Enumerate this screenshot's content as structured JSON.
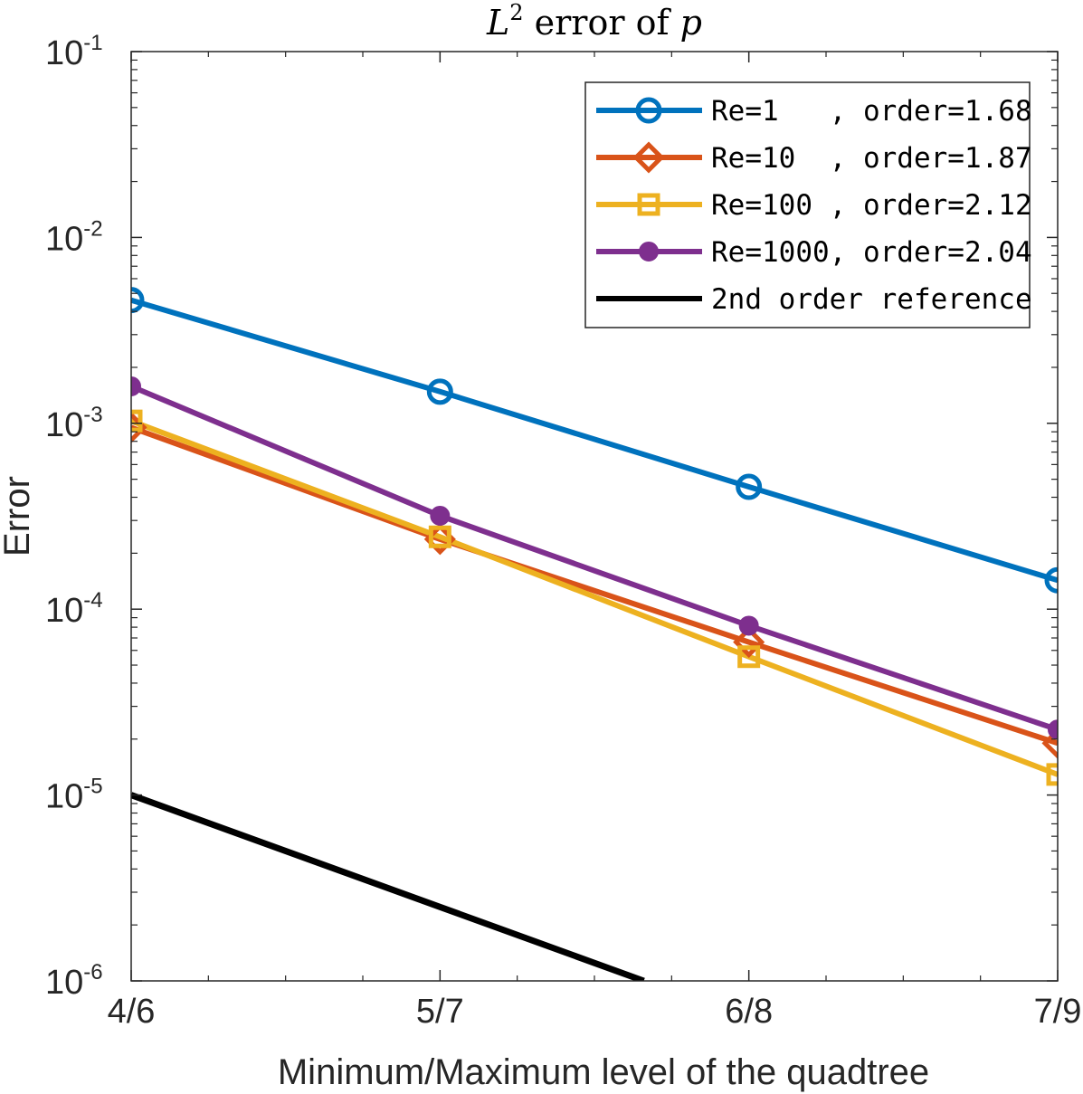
{
  "chart_data": {
    "type": "line",
    "title": {
      "base": "L",
      "sup": "2",
      "mid": " error of ",
      "var": "p"
    },
    "xlabel": "Minimum/Maximum level of the quadtree",
    "ylabel": "Error",
    "x": [
      0,
      1,
      2,
      3
    ],
    "categories": [
      "4/6",
      "5/7",
      "6/8",
      "7/9"
    ],
    "yscale": "log",
    "ylim": [
      1e-06,
      0.1
    ],
    "yticks": [
      {
        "base": "10",
        "exp": "-1",
        "value": 0.1
      },
      {
        "base": "10",
        "exp": "-2",
        "value": 0.01
      },
      {
        "base": "10",
        "exp": "-3",
        "value": 0.001
      },
      {
        "base": "10",
        "exp": "-4",
        "value": 0.0001
      },
      {
        "base": "10",
        "exp": "-5",
        "value": 1e-05
      },
      {
        "base": "10",
        "exp": "-6",
        "value": 1e-06
      }
    ],
    "grid": false,
    "legend_position": "top-right",
    "series": [
      {
        "name": "Re=1   , order=1.68",
        "color": "#0072BD",
        "marker": "circle",
        "x": [
          0,
          1,
          2,
          3
        ],
        "values": [
          0.0046,
          0.00148,
          0.000455,
          0.000143
        ]
      },
      {
        "name": "Re=10  , order=1.87",
        "color": "#D95319",
        "marker": "diamond",
        "x": [
          0,
          1,
          2,
          3
        ],
        "values": [
          0.00095,
          0.000238,
          6.65e-05,
          1.9e-05
        ]
      },
      {
        "name": "Re=100 , order=2.12",
        "color": "#EDB120",
        "marker": "square",
        "x": [
          0,
          1,
          2,
          3
        ],
        "values": [
          0.00103,
          0.000245,
          5.55e-05,
          1.29e-05
        ]
      },
      {
        "name": "Re=1000, order=2.04",
        "color": "#7E2F8E",
        "marker": "filled-circle",
        "x": [
          0,
          1,
          2,
          3
        ],
        "values": [
          0.00158,
          0.000318,
          8.15e-05,
          2.25e-05
        ]
      },
      {
        "name": "2nd order reference",
        "color": "#000000",
        "marker": "none",
        "x": [
          0,
          1,
          1.66
        ],
        "values": [
          1e-05,
          2.5e-06,
          1e-06
        ]
      }
    ]
  }
}
